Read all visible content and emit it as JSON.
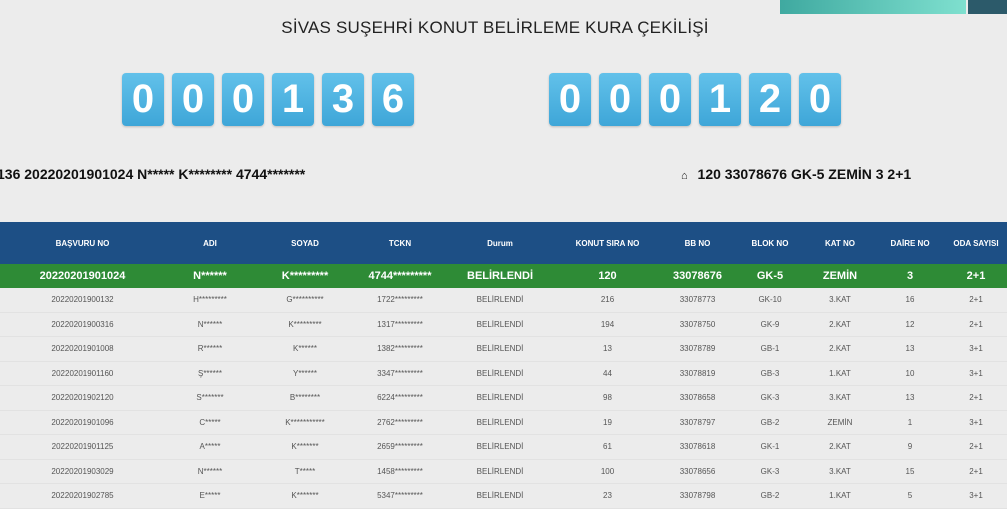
{
  "title": "SİVAS SUŞEHRİ KONUT BELİRLEME KURA ÇEKİLİŞİ",
  "counters": {
    "left": [
      "0",
      "0",
      "0",
      "1",
      "3",
      "6"
    ],
    "right": [
      "0",
      "0",
      "0",
      "1",
      "2",
      "0"
    ]
  },
  "info_left": "136 20220201901024 N***** K******** 4744*******",
  "info_right": "120 33078676 GK-5 ZEMİN 3 2+1",
  "info_right_icon": "home-icon",
  "table": {
    "headers": [
      "BAŞVURU NO",
      "ADI",
      "SOYAD",
      "TCKN",
      "Durum",
      "KONUT SIRA NO",
      "BB NO",
      "BLOK NO",
      "KAT NO",
      "DAİRE NO",
      "ODA SAYISI"
    ],
    "selected_row": [
      "20220201901024",
      "N******",
      "K*********",
      "4744*********",
      "BELİRLENDİ",
      "120",
      "33078676",
      "GK-5",
      "ZEMİN",
      "3",
      "2+1"
    ],
    "rows": [
      [
        "20220201900132",
        "H*********",
        "G**********",
        "1722*********",
        "BELİRLENDİ",
        "216",
        "33078773",
        "GK-10",
        "3.KAT",
        "16",
        "2+1"
      ],
      [
        "20220201900316",
        "N******",
        "K*********",
        "1317*********",
        "BELİRLENDİ",
        "194",
        "33078750",
        "GK-9",
        "2.KAT",
        "12",
        "2+1"
      ],
      [
        "20220201901008",
        "R******",
        "K******",
        "1382*********",
        "BELİRLENDİ",
        "13",
        "33078789",
        "GB-1",
        "2.KAT",
        "13",
        "3+1"
      ],
      [
        "20220201901160",
        "Ş******",
        "Y******",
        "3347*********",
        "BELİRLENDİ",
        "44",
        "33078819",
        "GB-3",
        "1.KAT",
        "10",
        "3+1"
      ],
      [
        "20220201902120",
        "S*******",
        "B********",
        "6224*********",
        "BELİRLENDİ",
        "98",
        "33078658",
        "GK-3",
        "3.KAT",
        "13",
        "2+1"
      ],
      [
        "20220201901096",
        "C*****",
        "K***********",
        "2762*********",
        "BELİRLENDİ",
        "19",
        "33078797",
        "GB-2",
        "ZEMİN",
        "1",
        "3+1"
      ],
      [
        "20220201901125",
        "A*****",
        "K*******",
        "2659*********",
        "BELİRLENDİ",
        "61",
        "33078618",
        "GK-1",
        "2.KAT",
        "9",
        "2+1"
      ],
      [
        "20220201903029",
        "N******",
        "T*****",
        "1458*********",
        "BELİRLENDİ",
        "100",
        "33078656",
        "GK-3",
        "3.KAT",
        "15",
        "2+1"
      ],
      [
        "20220201902785",
        "E*****",
        "K*******",
        "5347*********",
        "BELİRLENDİ",
        "23",
        "33078798",
        "GB-2",
        "1.KAT",
        "5",
        "3+1"
      ]
    ]
  }
}
